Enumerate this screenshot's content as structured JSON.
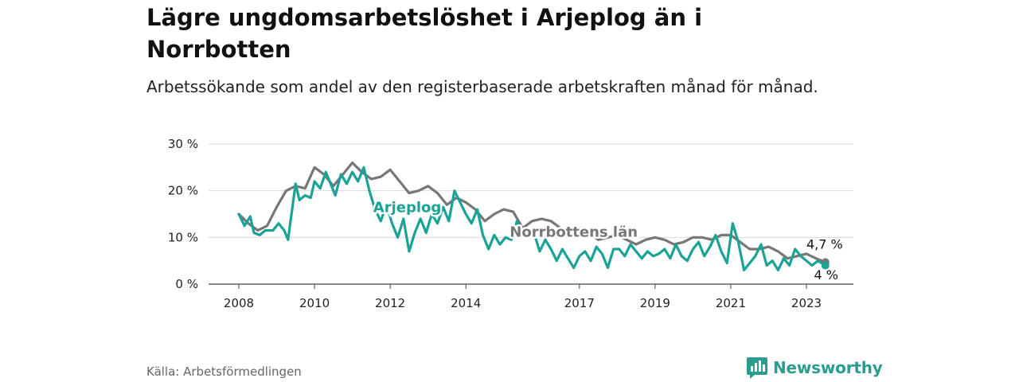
{
  "header": {
    "title": "Lägre ungdomsarbetslöshet i Arjeplog än i Norrbotten",
    "subtitle": "Arbetssökande som andel av den registerbaserade arbetskraften månad för månad."
  },
  "footer": {
    "source": "Källa: Arbetsförmedlingen",
    "brand": "Newsworthy",
    "brand_icon": "newsworthy-logo-icon"
  },
  "colors": {
    "arjeplog": "#1aa396",
    "norrbotten": "#777777",
    "grid": "#d9d9d9",
    "brand": "#2a9d8f"
  },
  "chart_data": {
    "type": "line",
    "title": "Lägre ungdomsarbetslöshet i Arjeplog än i Norrbotten",
    "subtitle": "Arbetssökande som andel av den registerbaserade arbetskraften månad för månad.",
    "xlabel": "",
    "ylabel": "",
    "xlim": [
      2008,
      2024
    ],
    "ylim": [
      0,
      30
    ],
    "grid": true,
    "y_ticks": [
      {
        "value": 0,
        "label": "0 %"
      },
      {
        "value": 10,
        "label": "10 %"
      },
      {
        "value": 20,
        "label": "20 %"
      },
      {
        "value": 30,
        "label": "30 %"
      }
    ],
    "x_ticks": [
      {
        "value": 2008,
        "label": "2008"
      },
      {
        "value": 2010,
        "label": "2010"
      },
      {
        "value": 2012,
        "label": "2012"
      },
      {
        "value": 2014,
        "label": "2014"
      },
      {
        "value": 2017,
        "label": "2017"
      },
      {
        "value": 2019,
        "label": "2019"
      },
      {
        "value": 2021,
        "label": "2021"
      },
      {
        "value": 2023,
        "label": "2023"
      }
    ],
    "series": [
      {
        "name": "Norrbottens län",
        "label": "Norrbottens län",
        "color": "#777777",
        "end_label": "4,7 %",
        "label_at": [
          2016.85,
          10.1
        ],
        "end_label_at": [
          2023.0,
          7.6
        ],
        "points": [
          [
            2008.0,
            15.0
          ],
          [
            2008.25,
            13.0
          ],
          [
            2008.5,
            11.5
          ],
          [
            2008.75,
            12.5
          ],
          [
            2009.0,
            16.5
          ],
          [
            2009.25,
            20.0
          ],
          [
            2009.5,
            21.0
          ],
          [
            2009.75,
            20.5
          ],
          [
            2010.0,
            25.0
          ],
          [
            2010.25,
            23.5
          ],
          [
            2010.5,
            21.0
          ],
          [
            2010.75,
            23.5
          ],
          [
            2011.0,
            26.0
          ],
          [
            2011.25,
            24.0
          ],
          [
            2011.5,
            22.5
          ],
          [
            2011.75,
            23.0
          ],
          [
            2012.0,
            24.5
          ],
          [
            2012.25,
            22.0
          ],
          [
            2012.5,
            19.5
          ],
          [
            2012.75,
            20.0
          ],
          [
            2013.0,
            21.0
          ],
          [
            2013.25,
            19.5
          ],
          [
            2013.5,
            17.0
          ],
          [
            2013.75,
            18.5
          ],
          [
            2014.0,
            17.5
          ],
          [
            2014.25,
            16.0
          ],
          [
            2014.5,
            13.5
          ],
          [
            2014.75,
            15.0
          ],
          [
            2015.0,
            16.0
          ],
          [
            2015.25,
            15.5
          ],
          [
            2015.5,
            12.0
          ],
          [
            2015.75,
            13.5
          ],
          [
            2016.0,
            14.0
          ],
          [
            2016.25,
            13.5
          ],
          [
            2016.5,
            12.0
          ],
          [
            2016.75,
            11.5
          ],
          [
            2017.0,
            12.0
          ],
          [
            2017.25,
            11.0
          ],
          [
            2017.5,
            9.5
          ],
          [
            2017.75,
            10.0
          ],
          [
            2018.0,
            10.5
          ],
          [
            2018.25,
            9.5
          ],
          [
            2018.5,
            8.5
          ],
          [
            2018.75,
            9.5
          ],
          [
            2019.0,
            10.0
          ],
          [
            2019.25,
            9.5
          ],
          [
            2019.5,
            8.5
          ],
          [
            2019.75,
            9.0
          ],
          [
            2020.0,
            10.0
          ],
          [
            2020.25,
            10.0
          ],
          [
            2020.5,
            9.5
          ],
          [
            2020.75,
            10.5
          ],
          [
            2021.0,
            10.5
          ],
          [
            2021.25,
            9.0
          ],
          [
            2021.5,
            7.5
          ],
          [
            2021.75,
            7.5
          ],
          [
            2022.0,
            8.0
          ],
          [
            2022.25,
            7.0
          ],
          [
            2022.5,
            5.5
          ],
          [
            2022.75,
            6.0
          ],
          [
            2023.0,
            6.5
          ],
          [
            2023.25,
            5.5
          ],
          [
            2023.5,
            4.7
          ]
        ]
      },
      {
        "name": "Arjeplog",
        "label": "Arjeplog",
        "color": "#1aa396",
        "end_label": "4 %",
        "label_at": [
          2012.45,
          15.4
        ],
        "end_label_at": [
          2023.2,
          1.0
        ],
        "points": [
          [
            2008.0,
            15.0
          ],
          [
            2008.15,
            12.5
          ],
          [
            2008.3,
            14.5
          ],
          [
            2008.4,
            11.0
          ],
          [
            2008.55,
            10.5
          ],
          [
            2008.7,
            11.5
          ],
          [
            2008.9,
            11.5
          ],
          [
            2009.05,
            13.0
          ],
          [
            2009.2,
            11.5
          ],
          [
            2009.3,
            9.5
          ],
          [
            2009.5,
            21.5
          ],
          [
            2009.6,
            18.0
          ],
          [
            2009.75,
            19.0
          ],
          [
            2009.9,
            18.5
          ],
          [
            2010.0,
            22.0
          ],
          [
            2010.15,
            20.5
          ],
          [
            2010.3,
            24.0
          ],
          [
            2010.45,
            21.0
          ],
          [
            2010.55,
            19.0
          ],
          [
            2010.7,
            23.5
          ],
          [
            2010.85,
            21.5
          ],
          [
            2011.0,
            24.0
          ],
          [
            2011.15,
            22.0
          ],
          [
            2011.3,
            25.0
          ],
          [
            2011.45,
            20.0
          ],
          [
            2011.6,
            16.0
          ],
          [
            2011.75,
            13.5
          ],
          [
            2011.9,
            17.0
          ],
          [
            2012.05,
            13.0
          ],
          [
            2012.2,
            10.0
          ],
          [
            2012.35,
            14.0
          ],
          [
            2012.5,
            7.0
          ],
          [
            2012.65,
            11.0
          ],
          [
            2012.8,
            14.0
          ],
          [
            2012.95,
            11.0
          ],
          [
            2013.1,
            15.0
          ],
          [
            2013.25,
            13.0
          ],
          [
            2013.4,
            16.5
          ],
          [
            2013.55,
            13.5
          ],
          [
            2013.7,
            20.0
          ],
          [
            2013.85,
            17.5
          ],
          [
            2014.0,
            15.0
          ],
          [
            2014.15,
            13.0
          ],
          [
            2014.3,
            16.0
          ],
          [
            2014.45,
            10.5
          ],
          [
            2014.6,
            7.5
          ],
          [
            2014.75,
            10.5
          ],
          [
            2014.9,
            8.5
          ],
          [
            2015.05,
            10.0
          ],
          [
            2015.2,
            9.5
          ],
          [
            2015.35,
            13.5
          ],
          [
            2015.5,
            10.5
          ],
          [
            2015.65,
            12.0
          ],
          [
            2015.8,
            11.0
          ],
          [
            2015.95,
            7.0
          ],
          [
            2016.1,
            9.5
          ],
          [
            2016.25,
            7.5
          ],
          [
            2016.4,
            5.0
          ],
          [
            2016.55,
            7.5
          ],
          [
            2016.7,
            5.5
          ],
          [
            2016.85,
            3.5
          ],
          [
            2017.0,
            6.0
          ],
          [
            2017.15,
            7.0
          ],
          [
            2017.3,
            5.0
          ],
          [
            2017.45,
            8.0
          ],
          [
            2017.6,
            6.5
          ],
          [
            2017.75,
            3.5
          ],
          [
            2017.9,
            7.5
          ],
          [
            2018.05,
            7.5
          ],
          [
            2018.2,
            6.0
          ],
          [
            2018.35,
            8.5
          ],
          [
            2018.5,
            7.0
          ],
          [
            2018.65,
            5.5
          ],
          [
            2018.8,
            7.0
          ],
          [
            2018.95,
            6.0
          ],
          [
            2019.1,
            6.5
          ],
          [
            2019.25,
            7.5
          ],
          [
            2019.4,
            5.5
          ],
          [
            2019.55,
            8.5
          ],
          [
            2019.7,
            6.0
          ],
          [
            2019.85,
            5.0
          ],
          [
            2020.0,
            7.5
          ],
          [
            2020.15,
            9.0
          ],
          [
            2020.3,
            6.0
          ],
          [
            2020.45,
            8.0
          ],
          [
            2020.6,
            10.5
          ],
          [
            2020.75,
            7.0
          ],
          [
            2020.9,
            4.5
          ],
          [
            2021.05,
            13.0
          ],
          [
            2021.2,
            9.0
          ],
          [
            2021.35,
            3.0
          ],
          [
            2021.5,
            4.5
          ],
          [
            2021.65,
            6.0
          ],
          [
            2021.8,
            8.5
          ],
          [
            2021.95,
            4.0
          ],
          [
            2022.1,
            5.0
          ],
          [
            2022.25,
            3.0
          ],
          [
            2022.4,
            5.5
          ],
          [
            2022.55,
            4.0
          ],
          [
            2022.7,
            7.5
          ],
          [
            2022.85,
            6.0
          ],
          [
            2023.0,
            5.0
          ],
          [
            2023.15,
            4.0
          ],
          [
            2023.3,
            5.0
          ],
          [
            2023.5,
            4.0
          ]
        ]
      }
    ]
  }
}
